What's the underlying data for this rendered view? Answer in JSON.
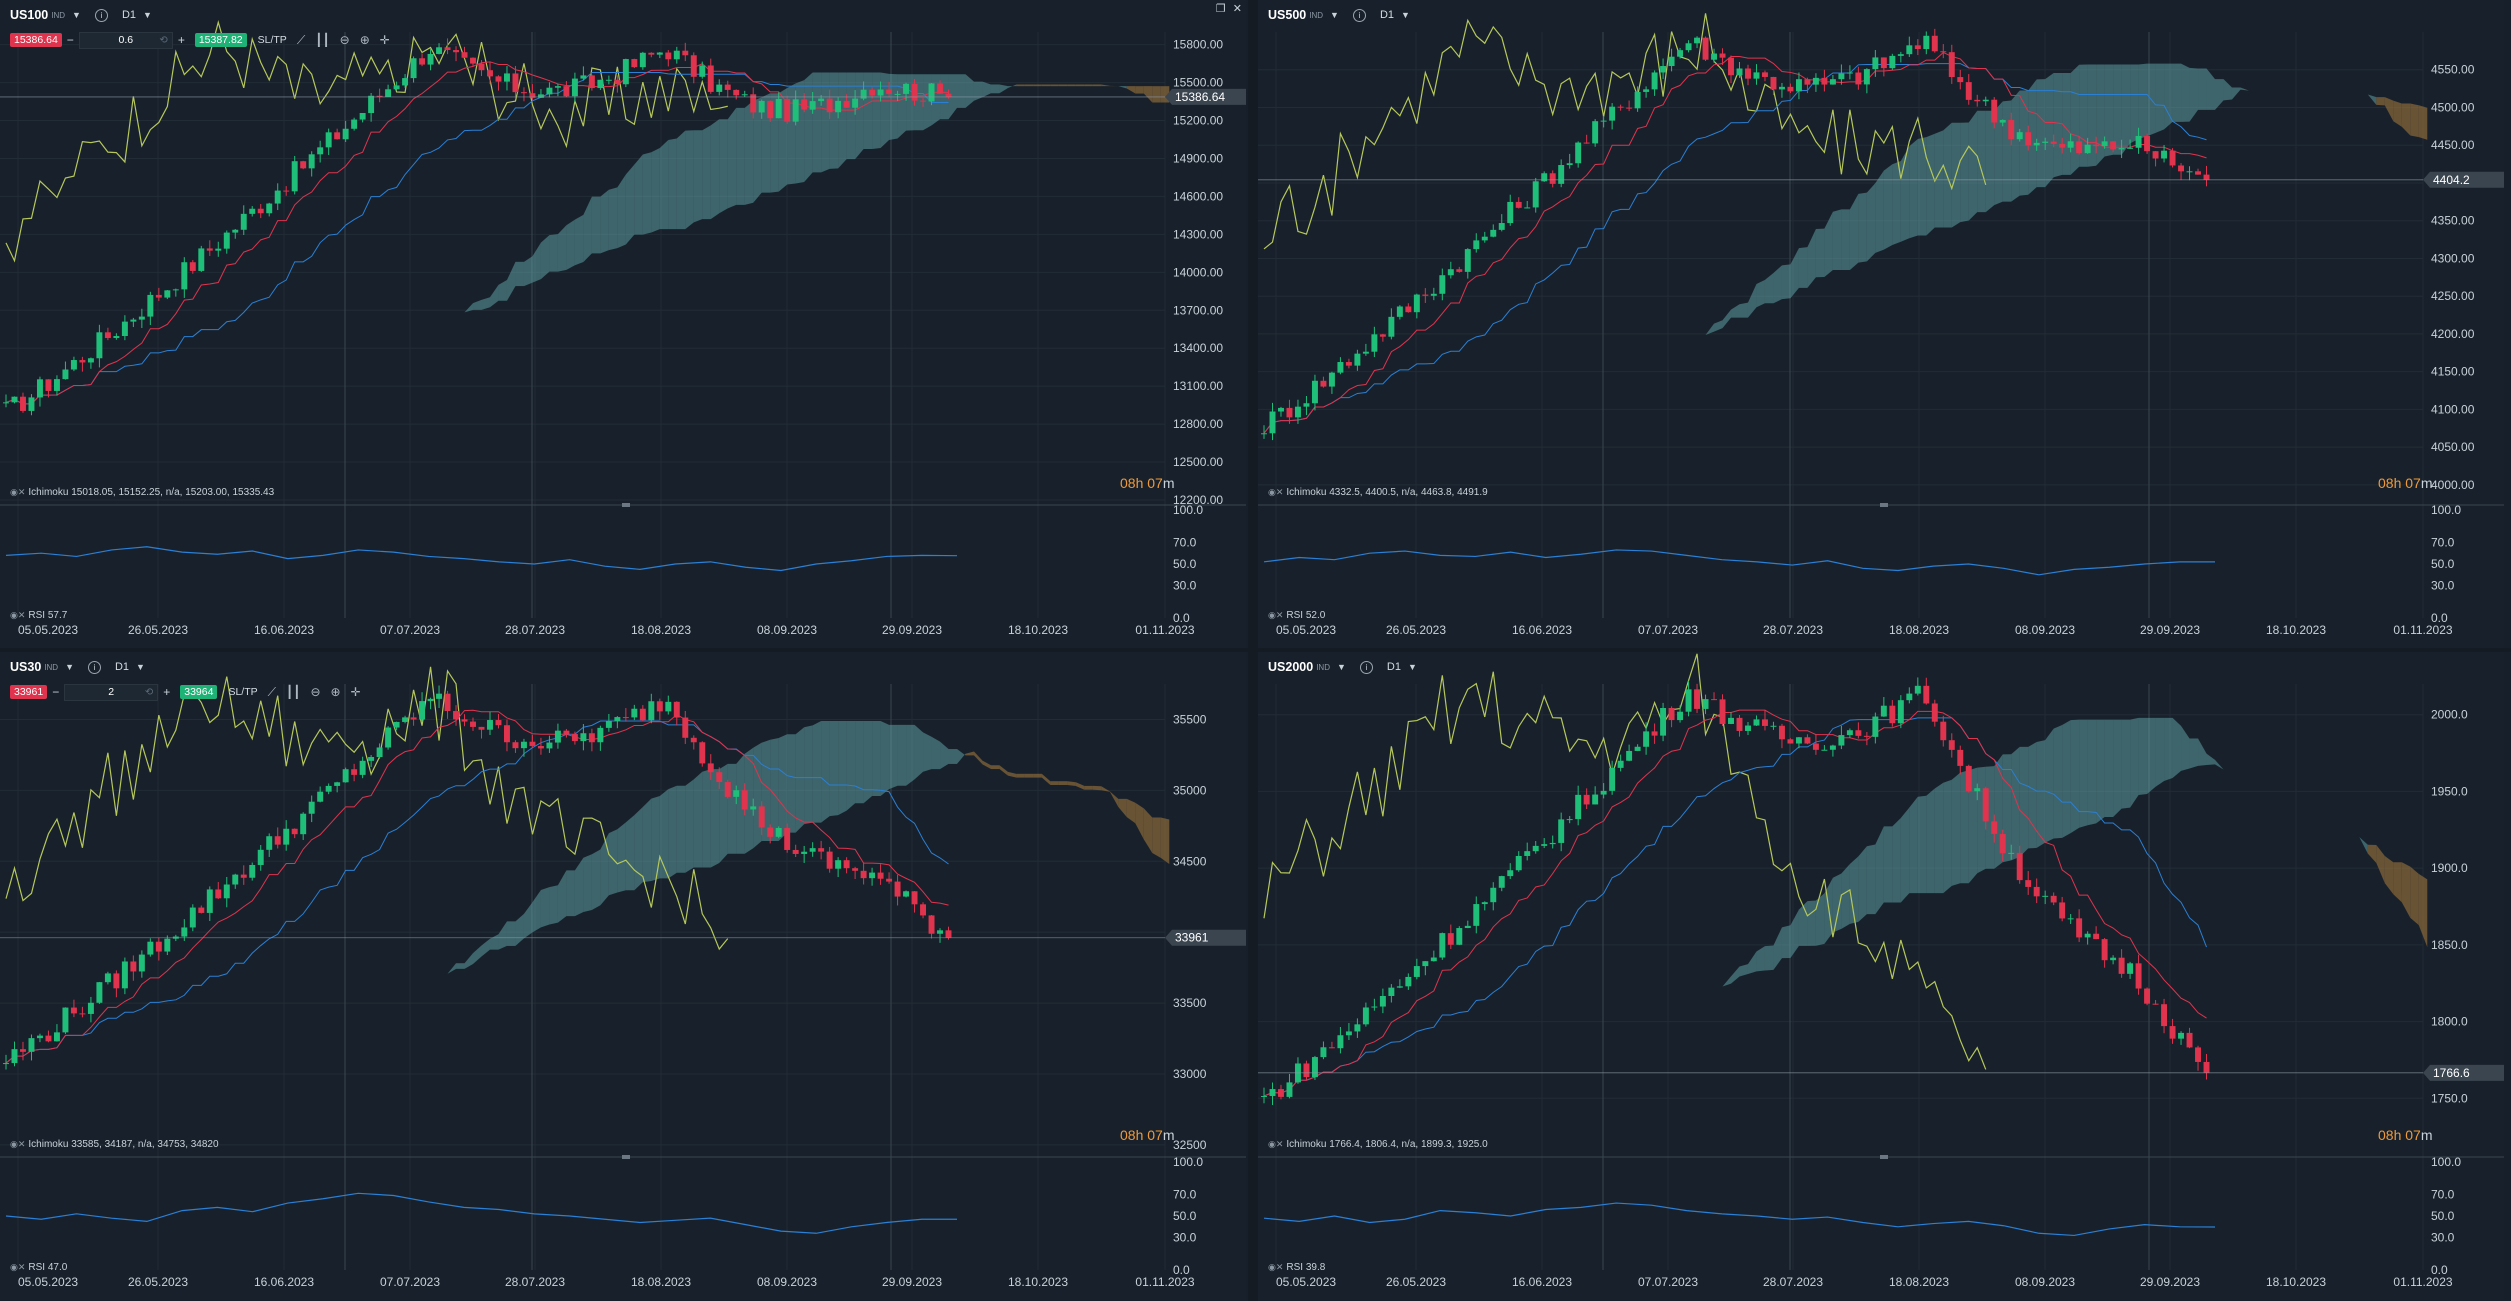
{
  "timer": {
    "hours": "08h 07",
    "minutes": "m"
  },
  "toolbar": {
    "sltp": "SL/TP",
    "minus": "−",
    "plus": "+",
    "window_restore": "❐",
    "window_close": "✕"
  },
  "colors": {
    "bg": "#18212b",
    "up": "#1fbf7a",
    "down": "#e0334d",
    "kumo_bull": "#5f9ea3",
    "kumo_bear": "#8a6a3a",
    "tenkan": "#e0334d",
    "kijun": "#2b7fd4",
    "chikou": "#b6c85a",
    "rsi": "#2b7fd4",
    "timer": "#f09a37"
  },
  "icons": [
    "line-chart-icon",
    "candle-type-icon",
    "zoom-out-icon",
    "zoom-in-icon",
    "crosshair-icon",
    "info-icon",
    "eye-icon"
  ],
  "charts": [
    {
      "symbol": "US100",
      "badge": "IND",
      "timeframe": "D1",
      "trade": {
        "sell": "15386.64",
        "qty": "0.6",
        "buy": "15387.82"
      },
      "ichimoku": "Ichimoku 15018.05, 15152.25, n/a, 15203.00, 15335.43",
      "rsi_label": "RSI 57.7",
      "price_tag": "15386.64",
      "current_price": 15386.64,
      "y_ticks": [
        "15800.00",
        "15500.00",
        "15200.00",
        "14900.00",
        "14600.00",
        "14300.00",
        "14000.00",
        "13700.00",
        "13400.00",
        "13100.00",
        "12800.00",
        "12500.00",
        "12200.00"
      ],
      "y_range": [
        12200,
        15900
      ],
      "price_start": 12900,
      "price_peak": 15780,
      "price_end": 15386.64,
      "rsi_ticks": [
        "100.0",
        "70.0",
        "50.0",
        "30.0",
        "0.0"
      ],
      "rsi_values": [
        58,
        60,
        57,
        63,
        66,
        61,
        59,
        62,
        55,
        58,
        63,
        61,
        57,
        55,
        52,
        50,
        54,
        48,
        45,
        50,
        52,
        47,
        44,
        50,
        53,
        57,
        58,
        57.7
      ],
      "x_dates": [
        "05.05.2023",
        "26.05.2023",
        "16.06.2023",
        "07.07.2023",
        "28.07.2023",
        "18.08.2023",
        "08.09.2023",
        "29.09.2023",
        "18.10.2023",
        "01.11.2023"
      ]
    },
    {
      "symbol": "US500",
      "badge": "IND",
      "timeframe": "D1",
      "ichimoku": "Ichimoku 4332.5, 4400.5, n/a, 4463.8, 4491.9",
      "rsi_label": "RSI 52.0",
      "price_tag": "4404.2",
      "current_price": 4404.2,
      "y_ticks": [
        "4550.00",
        "4500.00",
        "4450.00",
        "4400.00",
        "4350.00",
        "4300.00",
        "4250.00",
        "4200.00",
        "4150.00",
        "4100.00",
        "4050.00",
        "4000.00"
      ],
      "y_range": [
        3980,
        4600
      ],
      "price_start": 4080,
      "price_peak": 4590,
      "price_end": 4404.2,
      "rsi_ticks": [
        "100.0",
        "70.0",
        "50.0",
        "30.0",
        "0.0"
      ],
      "rsi_values": [
        52,
        56,
        54,
        60,
        62,
        58,
        57,
        61,
        56,
        59,
        63,
        62,
        58,
        54,
        52,
        49,
        53,
        46,
        44,
        48,
        50,
        46,
        40,
        45,
        47,
        50,
        52,
        52.0
      ],
      "x_dates": [
        "05.05.2023",
        "26.05.2023",
        "16.06.2023",
        "07.07.2023",
        "28.07.2023",
        "18.08.2023",
        "08.09.2023",
        "29.09.2023",
        "18.10.2023",
        "01.11.2023"
      ]
    },
    {
      "symbol": "US30",
      "badge": "IND",
      "timeframe": "D1",
      "trade": {
        "sell": "33961",
        "qty": "2",
        "buy": "33964"
      },
      "ichimoku": "Ichimoku 33585, 34187, n/a, 34753, 34820",
      "rsi_label": "RSI 47.0",
      "price_tag": "33961",
      "current_price": 33961,
      "y_ticks": [
        "35500",
        "35000",
        "34500",
        "34000",
        "33500",
        "33000",
        "32500"
      ],
      "y_range": [
        32450,
        35750
      ],
      "price_start": 33100,
      "price_peak": 35650,
      "price_end": 33961,
      "rsi_ticks": [
        "100.0",
        "70.0",
        "50.0",
        "30.0",
        "0.0"
      ],
      "rsi_values": [
        50,
        47,
        52,
        48,
        45,
        55,
        58,
        54,
        62,
        66,
        71,
        69,
        63,
        58,
        56,
        52,
        50,
        47,
        44,
        46,
        48,
        42,
        36,
        34,
        40,
        44,
        47,
        47.0
      ],
      "x_dates": [
        "05.05.2023",
        "26.05.2023",
        "16.06.2023",
        "07.07.2023",
        "28.07.2023",
        "18.08.2023",
        "08.09.2023",
        "29.09.2023",
        "18.10.2023",
        "01.11.2023"
      ]
    },
    {
      "symbol": "US2000",
      "badge": "IND",
      "timeframe": "D1",
      "ichimoku": "Ichimoku 1766.4, 1806.4, n/a, 1899.3, 1925.0",
      "rsi_label": "RSI 39.8",
      "price_tag": "1766.6",
      "current_price": 1766.6,
      "y_ticks": [
        "2000.0",
        "1950.0",
        "1900.0",
        "1850.0",
        "1800.0",
        "1750.0"
      ],
      "y_range": [
        1715,
        2020
      ],
      "price_start": 1750,
      "price_peak": 2015,
      "price_end": 1766.6,
      "rsi_ticks": [
        "100.0",
        "70.0",
        "50.0",
        "30.0",
        "0.0"
      ],
      "rsi_values": [
        48,
        45,
        50,
        44,
        47,
        55,
        53,
        50,
        56,
        58,
        62,
        60,
        55,
        52,
        50,
        47,
        49,
        44,
        40,
        43,
        45,
        41,
        34,
        32,
        38,
        42,
        40,
        39.8
      ],
      "x_dates": [
        "05.05.2023",
        "26.05.2023",
        "16.06.2023",
        "07.07.2023",
        "28.07.2023",
        "18.08.2023",
        "08.09.2023",
        "29.09.2023",
        "18.10.2023",
        "01.11.2023"
      ]
    }
  ]
}
